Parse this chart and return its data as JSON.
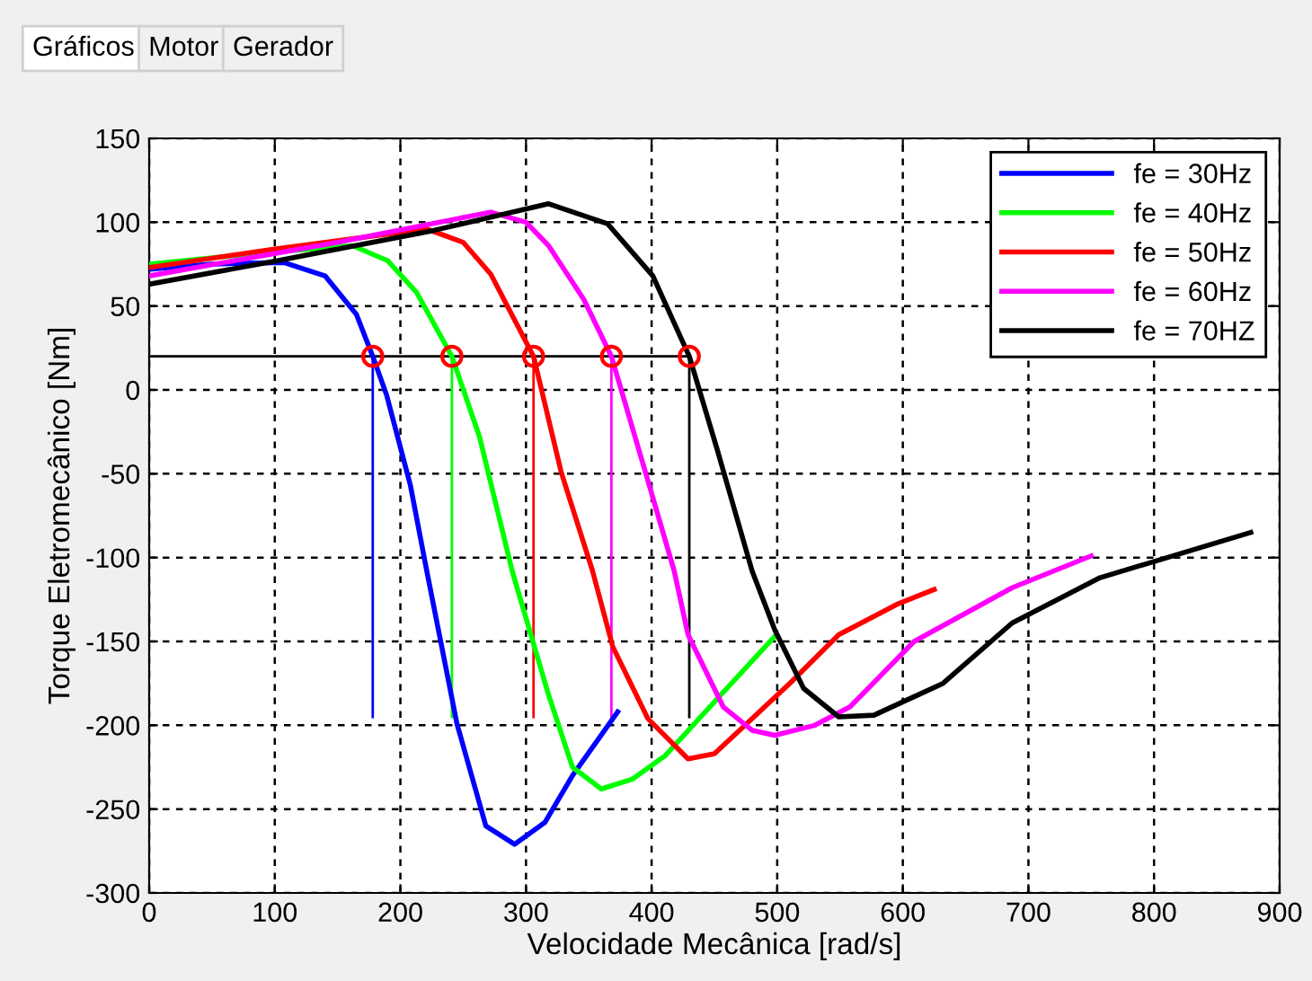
{
  "chart_data": {
    "type": "line",
    "xlabel": "Velocidade Mecânica [rad/s]",
    "ylabel": "Torque Eletromecânico [Nm]",
    "annotations": [
      "Gráficos",
      "Motor",
      "Gerador"
    ],
    "xlim": [
      0,
      900
    ],
    "xticks": [
      0,
      100,
      200,
      300,
      400,
      500,
      600,
      700,
      800,
      900
    ],
    "ylim": [
      -300,
      150
    ],
    "yticks": [
      -300,
      -250,
      -200,
      -150,
      -100,
      -50,
      0,
      50,
      100,
      150
    ],
    "grid": true,
    "legend": "top right",
    "marker": "none",
    "line_style": "solid",
    "series": [
      {
        "name": "fe = 30Hz",
        "color": "#0000ff",
        "x": [
          0,
          50,
          107,
          140,
          165,
          178,
          189,
          208,
          221,
          245,
          268,
          291,
          315,
          337,
          373
        ],
        "values": [
          72,
          75,
          76,
          68,
          45,
          20,
          -3,
          -57,
          -108,
          -199,
          -260,
          -271,
          -258,
          -230,
          -192
        ]
      },
      {
        "name": "fe = 40Hz",
        "color": "#00ff00",
        "x": [
          0,
          80,
          162,
          190,
          213,
          241,
          263,
          289,
          318,
          337,
          360,
          385,
          411,
          455,
          498
        ],
        "values": [
          75,
          81,
          86,
          77,
          58,
          20,
          -28,
          -108,
          -182,
          -225,
          -238,
          -232,
          -218,
          -182,
          -147
        ]
      },
      {
        "name": "fe = 50Hz",
        "color": "#ff0000",
        "x": [
          0,
          100,
          221,
          250,
          272,
          306,
          328,
          353,
          369,
          397,
          429,
          450,
          470,
          510,
          549,
          595,
          625
        ],
        "values": [
          73,
          84,
          96,
          88,
          69,
          20,
          -49,
          -108,
          -153,
          -196,
          -220,
          -217,
          -203,
          -175,
          -146,
          -128,
          -119
        ]
      },
      {
        "name": "fe = 60Hz",
        "color": "#ff00ff",
        "x": [
          0,
          150,
          272,
          300,
          318,
          346,
          368,
          397,
          418,
          429,
          457,
          480,
          498,
          530,
          558,
          609,
          687,
          750
        ],
        "values": [
          68,
          88,
          106,
          100,
          86,
          54,
          20,
          -54,
          -108,
          -146,
          -189,
          -203,
          -206,
          -200,
          -189,
          -150,
          -118,
          -99
        ]
      },
      {
        "name": "fe = 70HZ",
        "color": "#000000",
        "x": [
          0,
          102,
          226,
          318,
          365,
          401,
          430,
          452,
          480,
          498,
          521,
          549,
          577,
          632,
          687,
          757,
          877
        ],
        "values": [
          63,
          77,
          95,
          111,
          99,
          68,
          20,
          -35,
          -108,
          -143,
          -178,
          -195,
          -194,
          -175,
          -139,
          -112,
          -85
        ]
      },
      {
        "type": "line",
        "color": "#000000",
        "x": [
          0,
          430
        ],
        "values": [
          20,
          20
        ]
      },
      {
        "type": "line",
        "color": "#0000ff",
        "x": [
          178,
          178
        ],
        "values": [
          20,
          -195
        ]
      },
      {
        "type": "line",
        "color": "#00ff00",
        "x": [
          241,
          241
        ],
        "values": [
          20,
          -195
        ]
      },
      {
        "type": "line",
        "color": "#ff0000",
        "x": [
          306,
          306
        ],
        "values": [
          20,
          -195
        ]
      },
      {
        "type": "line",
        "color": "#ff00ff",
        "x": [
          368,
          368
        ],
        "values": [
          20,
          -195
        ]
      },
      {
        "type": "line",
        "color": "#000000",
        "x": [
          430,
          430
        ],
        "values": [
          20,
          -195
        ]
      },
      {
        "type": "scatter",
        "color": "#ff0000",
        "marker": "circle",
        "x": [
          178,
          241,
          306,
          368,
          430
        ],
        "values": [
          20,
          20,
          20,
          20,
          20
        ]
      }
    ]
  }
}
